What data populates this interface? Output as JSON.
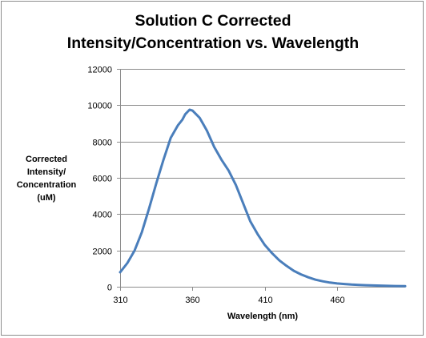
{
  "chart_data": {
    "type": "line",
    "title_lines": [
      "Solution C Corrected",
      "Intensity/Concentration vs. Wavelength"
    ],
    "xlabel": "Wavelength (nm)",
    "ylabel_lines": [
      "Corrected",
      "Intensity/",
      "Concentration",
      "(uM)"
    ],
    "xlim": [
      310,
      507
    ],
    "ylim": [
      0,
      12000
    ],
    "x_ticks": [
      310,
      360,
      410,
      460
    ],
    "y_ticks": [
      0,
      2000,
      4000,
      6000,
      8000,
      10000,
      12000
    ],
    "grid": "horizontal",
    "line_color": "#4a7ebb",
    "series": [
      {
        "x": [
          310,
          315,
          320,
          325,
          330,
          335,
          340,
          345,
          350,
          353,
          355,
          358,
          360,
          365,
          370,
          375,
          380,
          385,
          390,
          395,
          400,
          405,
          410,
          415,
          420,
          425,
          430,
          435,
          440,
          445,
          450,
          455,
          460,
          465,
          470,
          475,
          480,
          485,
          490,
          495,
          500,
          507
        ],
        "values": [
          800,
          1300,
          2000,
          3000,
          4300,
          5700,
          7000,
          8200,
          8900,
          9200,
          9500,
          9750,
          9700,
          9300,
          8600,
          7700,
          7000,
          6400,
          5600,
          4600,
          3600,
          2900,
          2300,
          1850,
          1450,
          1150,
          880,
          680,
          520,
          390,
          300,
          230,
          180,
          150,
          120,
          100,
          85,
          70,
          60,
          50,
          40,
          30
        ]
      }
    ]
  }
}
